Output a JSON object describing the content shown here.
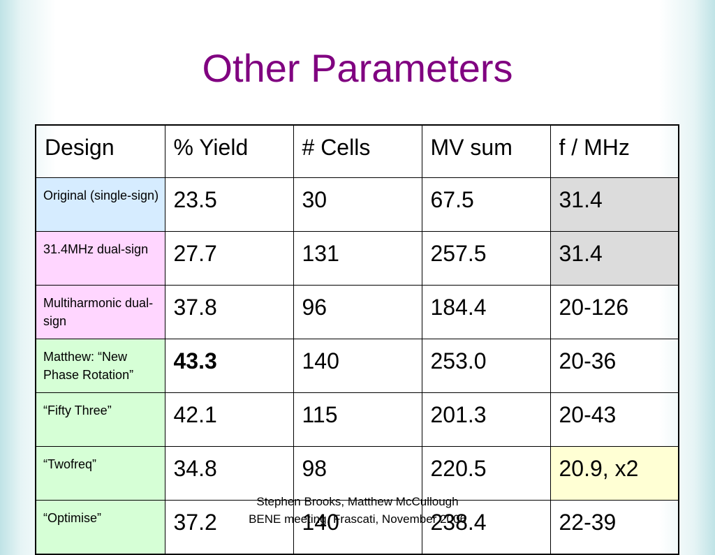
{
  "slide": {
    "title": "Other Parameters",
    "footer_line1": "Stephen Brooks, Matthew McCullough",
    "footer_line2": "BENE meeting, Frascati, November 2006"
  },
  "colors": {
    "title": "#800080",
    "design_blue": "#d6ecff",
    "design_pink": "#ffd6ff",
    "design_green": "#d6ffd6",
    "highlight_grey": "#dcdcdc",
    "highlight_yellow": "#ffffd4"
  },
  "table": {
    "headers": [
      "Design",
      "% Yield",
      "# Cells",
      "MV sum",
      "f / MHz"
    ],
    "rows": [
      {
        "design": "Original (single-sign)",
        "yield": "23.5",
        "cells": "30",
        "mv_sum": "67.5",
        "freq": "31.4"
      },
      {
        "design": "31.4MHz dual-sign",
        "yield": "27.7",
        "cells": "131",
        "mv_sum": "257.5",
        "freq": "31.4"
      },
      {
        "design": "Multiharmonic dual-sign",
        "yield": "37.8",
        "cells": "96",
        "mv_sum": "184.4",
        "freq": "20-126"
      },
      {
        "design": "Matthew: “New Phase Rotation”",
        "yield": "43.3",
        "cells": "140",
        "mv_sum": "253.0",
        "freq": "20-36"
      },
      {
        "design": "“Fifty Three”",
        "yield": "42.1",
        "cells": "115",
        "mv_sum": "201.3",
        "freq": "20-43"
      },
      {
        "design": "“Twofreq”",
        "yield": "34.8",
        "cells": "98",
        "mv_sum": "220.5",
        "freq": "20.9, x2"
      },
      {
        "design": "“Optimise”",
        "yield": "37.2",
        "cells": "140",
        "mv_sum": "238.4",
        "freq": "22-39"
      }
    ]
  }
}
